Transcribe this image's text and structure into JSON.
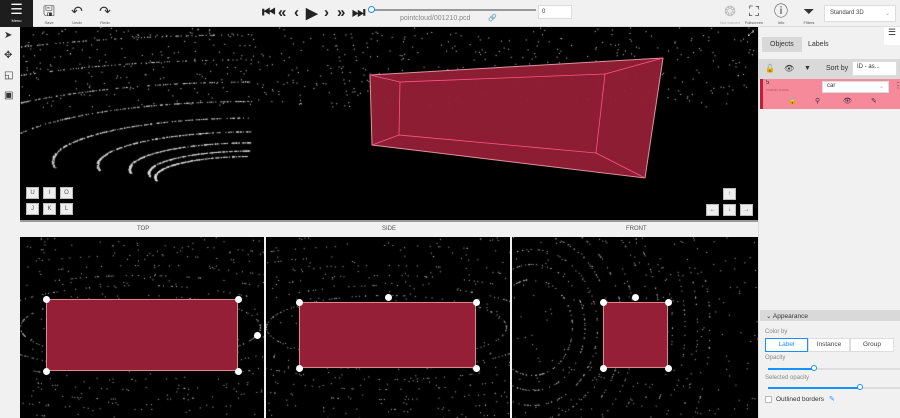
{
  "toolbar": {
    "menu": "Menu",
    "save": "Save",
    "undo": "Undo",
    "redo": "Redo",
    "filename": "pointcloud/001210.pcd",
    "frame": "0",
    "not_trained": "Not trained",
    "fullscreen": "Fullscreen",
    "info": "Info",
    "filters": "Filters",
    "workspace": "Standard 3D"
  },
  "keys": {
    "row1": [
      "U",
      "I",
      "O"
    ],
    "row2": [
      "J",
      "K",
      "L"
    ],
    "arrows": [
      "↑",
      "←",
      "↓",
      "→"
    ]
  },
  "views": {
    "top": "TOP",
    "side": "SIDE",
    "front": "FRONT"
  },
  "panel": {
    "tabs": [
      "Objects",
      "Labels"
    ],
    "sort_by": "Sort by",
    "sort_value": "ID - as...",
    "object": {
      "id": "5",
      "type": "CUBOID SHAPE",
      "label": "car",
      "color": "#f68a9a"
    }
  },
  "appearance": {
    "title": "Appearance",
    "color_by": "Color by",
    "options": [
      "Label",
      "Instance",
      "Group"
    ],
    "selected": "Label",
    "opacity": "Opacity",
    "opacity_value": 0.35,
    "selected_opacity": "Selected opacity",
    "selected_opacity_value": 0.7,
    "outlined": "Outlined borders",
    "outlined_checked": false
  },
  "colors": {
    "cuboid": "#951f36",
    "accent": "#1890ff"
  }
}
